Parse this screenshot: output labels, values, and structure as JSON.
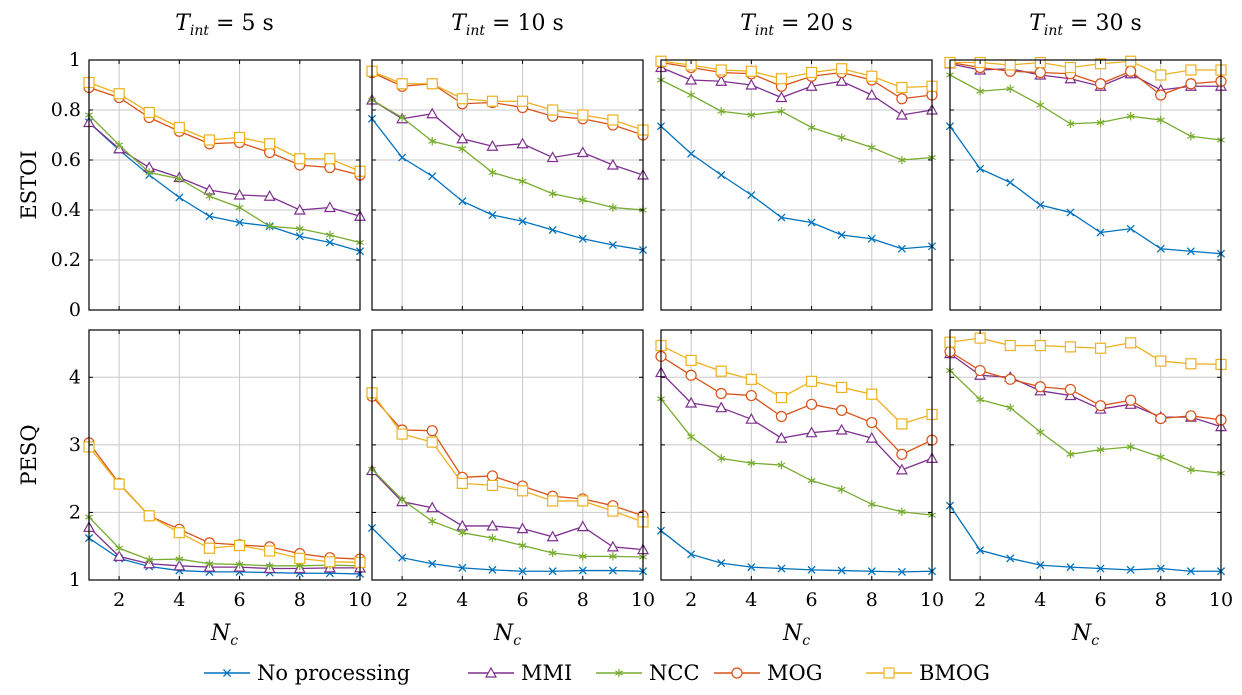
{
  "chart_data": {
    "type": "line",
    "columns": [
      {
        "title_main": "T",
        "title_sub": "int",
        "title_rest": " = 5 s"
      },
      {
        "title_main": "T",
        "title_sub": "int",
        "title_rest": " = 10 s"
      },
      {
        "title_main": "T",
        "title_sub": "int",
        "title_rest": " = 20 s"
      },
      {
        "title_main": "T",
        "title_sub": "int",
        "title_rest": " = 30 s"
      }
    ],
    "rows": [
      {
        "ylabel": "ESTOI",
        "ylim": [
          0,
          1
        ],
        "yticks": [
          0,
          0.2,
          0.4,
          0.6,
          0.8,
          1
        ],
        "ytick_labels": [
          "0",
          "0.2",
          "0.4",
          "0.6",
          "0.8",
          "1"
        ]
      },
      {
        "ylabel": "PESQ",
        "ylim": [
          1,
          4.7
        ],
        "yticks": [
          1,
          2,
          3,
          4
        ],
        "ytick_labels": [
          "1",
          "2",
          "3",
          "4"
        ]
      }
    ],
    "xlabel_main": "N",
    "xlabel_sub": "c",
    "xlim": [
      1,
      10
    ],
    "xticks": [
      2,
      4,
      6,
      8,
      10
    ],
    "xtick_labels": [
      "2",
      "4",
      "6",
      "8",
      "10"
    ],
    "x": [
      1,
      2,
      3,
      4,
      5,
      6,
      7,
      8,
      9,
      10
    ],
    "grid": true,
    "legend_position": "bottom",
    "series_styles": [
      {
        "name": "No processing",
        "color": "#0072bd",
        "marker": "x"
      },
      {
        "name": "MMI",
        "color": "#7e2f8e",
        "marker": "triangle"
      },
      {
        "name": "NCC",
        "color": "#77ac30",
        "marker": "star"
      },
      {
        "name": "MOG",
        "color": "#d95319",
        "marker": "circle"
      },
      {
        "name": "BMOG",
        "color": "#edb120",
        "marker": "square"
      }
    ],
    "panels": [
      {
        "row": 0,
        "col": 0,
        "series": [
          [
            0.75,
            0.64,
            0.54,
            0.45,
            0.375,
            0.35,
            0.335,
            0.295,
            0.27,
            0.235
          ],
          [
            0.75,
            0.645,
            0.57,
            0.53,
            0.48,
            0.46,
            0.455,
            0.4,
            0.41,
            0.375
          ],
          [
            0.78,
            0.66,
            0.55,
            0.525,
            0.455,
            0.41,
            0.335,
            0.325,
            0.3,
            0.27
          ],
          [
            0.89,
            0.85,
            0.77,
            0.715,
            0.665,
            0.67,
            0.63,
            0.58,
            0.57,
            0.54
          ],
          [
            0.91,
            0.865,
            0.79,
            0.73,
            0.68,
            0.69,
            0.665,
            0.605,
            0.605,
            0.555
          ]
        ]
      },
      {
        "row": 0,
        "col": 1,
        "series": [
          [
            0.765,
            0.61,
            0.535,
            0.435,
            0.38,
            0.355,
            0.32,
            0.285,
            0.26,
            0.24
          ],
          [
            0.84,
            0.765,
            0.785,
            0.685,
            0.655,
            0.665,
            0.61,
            0.63,
            0.58,
            0.54
          ],
          [
            0.84,
            0.77,
            0.675,
            0.645,
            0.55,
            0.515,
            0.465,
            0.44,
            0.41,
            0.4
          ],
          [
            0.95,
            0.895,
            0.905,
            0.825,
            0.83,
            0.81,
            0.775,
            0.765,
            0.74,
            0.7
          ],
          [
            0.955,
            0.905,
            0.905,
            0.845,
            0.835,
            0.835,
            0.8,
            0.78,
            0.76,
            0.72
          ]
        ]
      },
      {
        "row": 0,
        "col": 2,
        "series": [
          [
            0.735,
            0.625,
            0.54,
            0.46,
            0.37,
            0.35,
            0.3,
            0.285,
            0.245,
            0.255
          ],
          [
            0.97,
            0.92,
            0.915,
            0.9,
            0.85,
            0.895,
            0.915,
            0.86,
            0.78,
            0.8
          ],
          [
            0.92,
            0.86,
            0.795,
            0.78,
            0.795,
            0.73,
            0.69,
            0.65,
            0.6,
            0.61
          ],
          [
            0.99,
            0.97,
            0.95,
            0.945,
            0.895,
            0.935,
            0.95,
            0.92,
            0.845,
            0.86
          ],
          [
            0.995,
            0.98,
            0.96,
            0.955,
            0.925,
            0.95,
            0.965,
            0.935,
            0.89,
            0.895
          ]
        ]
      },
      {
        "row": 0,
        "col": 3,
        "series": [
          [
            0.735,
            0.565,
            0.51,
            0.42,
            0.39,
            0.31,
            0.325,
            0.245,
            0.235,
            0.225
          ],
          [
            0.985,
            0.96,
            0.965,
            0.94,
            0.925,
            0.895,
            0.945,
            0.88,
            0.895,
            0.895
          ],
          [
            0.94,
            0.875,
            0.885,
            0.82,
            0.745,
            0.75,
            0.775,
            0.76,
            0.695,
            0.68
          ],
          [
            0.99,
            0.97,
            0.955,
            0.95,
            0.945,
            0.905,
            0.955,
            0.86,
            0.905,
            0.915
          ],
          [
            0.99,
            0.99,
            0.98,
            0.99,
            0.97,
            0.985,
            0.995,
            0.94,
            0.96,
            0.96
          ]
        ]
      },
      {
        "row": 1,
        "col": 0,
        "series": [
          [
            1.62,
            1.32,
            1.2,
            1.14,
            1.12,
            1.12,
            1.11,
            1.1,
            1.1,
            1.09
          ],
          [
            1.78,
            1.35,
            1.24,
            1.21,
            1.19,
            1.19,
            1.17,
            1.17,
            1.18,
            1.18
          ],
          [
            1.93,
            1.47,
            1.3,
            1.31,
            1.24,
            1.23,
            1.21,
            1.21,
            1.22,
            1.21
          ],
          [
            3.03,
            2.43,
            1.95,
            1.75,
            1.55,
            1.52,
            1.49,
            1.39,
            1.33,
            1.31
          ],
          [
            2.97,
            2.42,
            1.95,
            1.7,
            1.47,
            1.51,
            1.43,
            1.32,
            1.27,
            1.26
          ]
        ]
      },
      {
        "row": 1,
        "col": 1,
        "series": [
          [
            1.77,
            1.33,
            1.24,
            1.18,
            1.15,
            1.13,
            1.13,
            1.14,
            1.14,
            1.13
          ],
          [
            2.62,
            2.16,
            2.07,
            1.8,
            1.8,
            1.76,
            1.64,
            1.79,
            1.49,
            1.45
          ],
          [
            2.64,
            2.19,
            1.87,
            1.7,
            1.62,
            1.51,
            1.4,
            1.35,
            1.35,
            1.34
          ],
          [
            3.72,
            3.22,
            3.21,
            2.52,
            2.54,
            2.39,
            2.24,
            2.2,
            2.1,
            1.95
          ],
          [
            3.77,
            3.16,
            3.04,
            2.43,
            2.4,
            2.32,
            2.17,
            2.17,
            2.02,
            1.86
          ]
        ]
      },
      {
        "row": 1,
        "col": 2,
        "series": [
          [
            1.73,
            1.38,
            1.25,
            1.19,
            1.17,
            1.15,
            1.14,
            1.13,
            1.12,
            1.13
          ],
          [
            4.07,
            3.62,
            3.55,
            3.38,
            3.1,
            3.18,
            3.22,
            3.1,
            2.63,
            2.8
          ],
          [
            3.68,
            3.12,
            2.8,
            2.73,
            2.7,
            2.47,
            2.34,
            2.12,
            2.01,
            1.96
          ],
          [
            4.31,
            4.03,
            3.76,
            3.73,
            3.42,
            3.6,
            3.51,
            3.33,
            2.86,
            3.07
          ],
          [
            4.47,
            4.25,
            4.09,
            3.97,
            3.7,
            3.94,
            3.85,
            3.75,
            3.31,
            3.45
          ]
        ]
      },
      {
        "row": 1,
        "col": 3,
        "series": [
          [
            2.1,
            1.44,
            1.32,
            1.22,
            1.19,
            1.17,
            1.15,
            1.17,
            1.13,
            1.13
          ],
          [
            4.35,
            4.03,
            4.0,
            3.8,
            3.73,
            3.53,
            3.6,
            3.41,
            3.41,
            3.27
          ],
          [
            4.1,
            3.67,
            3.55,
            3.19,
            2.86,
            2.93,
            2.97,
            2.82,
            2.63,
            2.58
          ],
          [
            4.38,
            4.1,
            3.97,
            3.86,
            3.82,
            3.58,
            3.66,
            3.39,
            3.43,
            3.37
          ],
          [
            4.52,
            4.58,
            4.47,
            4.47,
            4.45,
            4.43,
            4.51,
            4.24,
            4.2,
            4.19
          ]
        ]
      }
    ]
  }
}
